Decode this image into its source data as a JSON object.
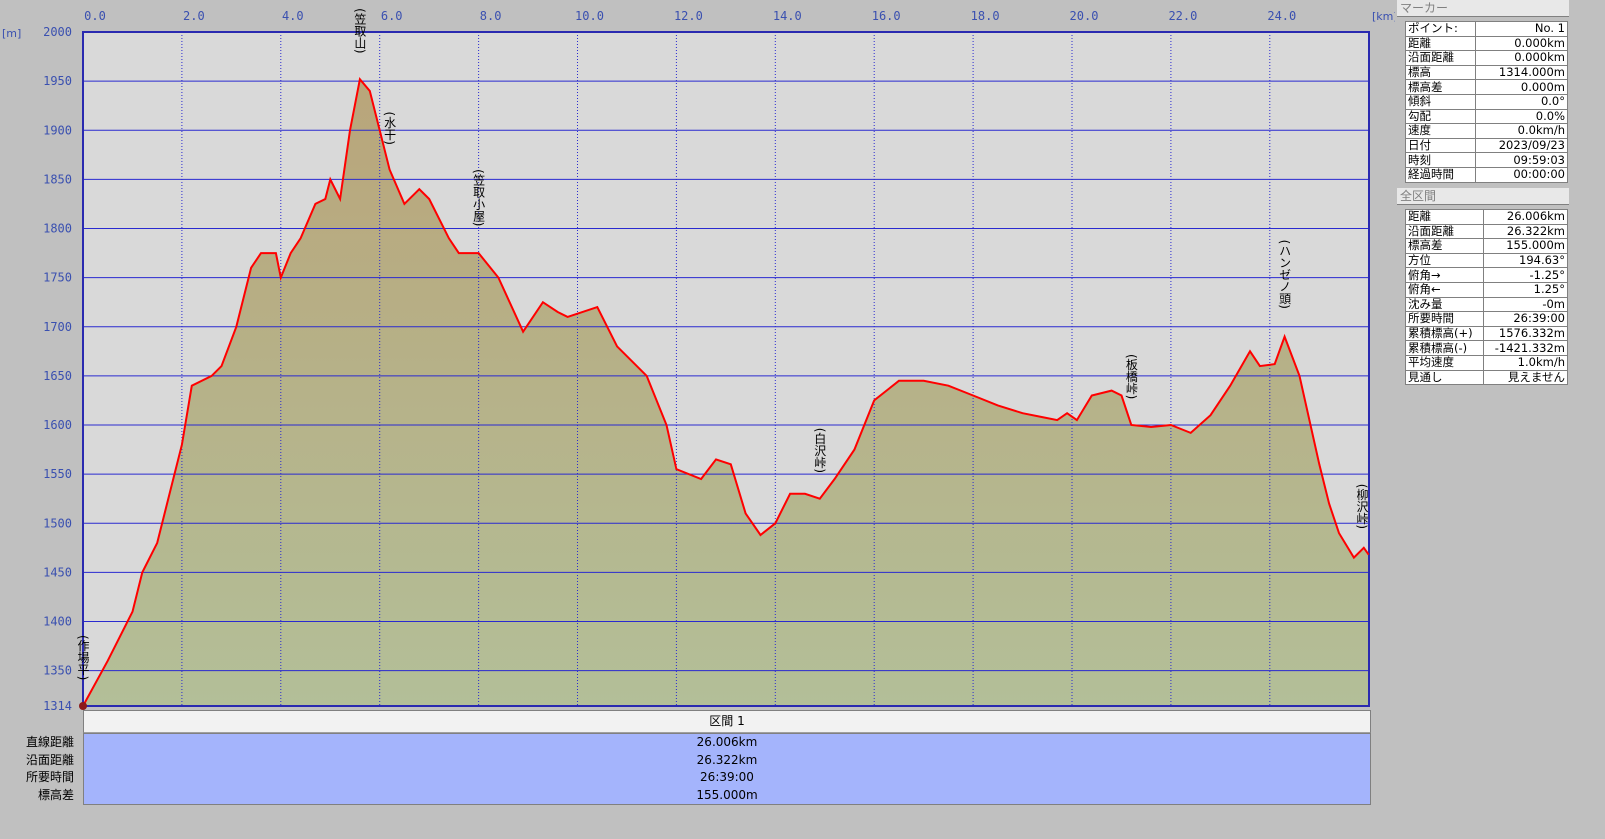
{
  "chart_data": {
    "type": "area",
    "xlabel": "[km]",
    "ylabel": "[m]",
    "xlim": [
      0,
      26.006
    ],
    "ylim": [
      1314,
      2000
    ],
    "x_ticks": [
      "0.0",
      "2.0",
      "4.0",
      "6.0",
      "8.0",
      "10.0",
      "12.0",
      "14.0",
      "16.0",
      "18.0",
      "20.0",
      "22.0",
      "24.0"
    ],
    "y_ticks": [
      "2000",
      "1950",
      "1900",
      "1850",
      "1800",
      "1750",
      "1700",
      "1650",
      "1600",
      "1550",
      "1500",
      "1450",
      "1400",
      "1350",
      "1314"
    ],
    "grid": true,
    "colors": {
      "line": "#ff0000",
      "grid": "#2a2ad0",
      "fill_top": "#b9a57a",
      "fill_bottom": "#b3bf98",
      "sky": "#d9d9d9",
      "axis_text": "#3a50b0"
    },
    "points": [
      [
        0,
        1314
      ],
      [
        0.5,
        1360
      ],
      [
        1.0,
        1410
      ],
      [
        1.2,
        1450
      ],
      [
        1.5,
        1480
      ],
      [
        1.8,
        1540
      ],
      [
        2.0,
        1580
      ],
      [
        2.2,
        1640
      ],
      [
        2.6,
        1650
      ],
      [
        2.8,
        1660
      ],
      [
        3.1,
        1700
      ],
      [
        3.4,
        1760
      ],
      [
        3.6,
        1775
      ],
      [
        3.9,
        1775
      ],
      [
        4.0,
        1750
      ],
      [
        4.2,
        1775
      ],
      [
        4.4,
        1790
      ],
      [
        4.7,
        1825
      ],
      [
        4.9,
        1830
      ],
      [
        5.0,
        1850
      ],
      [
        5.2,
        1830
      ],
      [
        5.4,
        1900
      ],
      [
        5.6,
        1952
      ],
      [
        5.8,
        1940
      ],
      [
        6.0,
        1900
      ],
      [
        6.2,
        1860
      ],
      [
        6.5,
        1825
      ],
      [
        6.8,
        1840
      ],
      [
        7.0,
        1830
      ],
      [
        7.4,
        1790
      ],
      [
        7.6,
        1775
      ],
      [
        8.0,
        1775
      ],
      [
        8.4,
        1750
      ],
      [
        8.9,
        1695
      ],
      [
        9.3,
        1725
      ],
      [
        9.6,
        1715
      ],
      [
        9.8,
        1710
      ],
      [
        10.4,
        1720
      ],
      [
        10.8,
        1680
      ],
      [
        11.4,
        1650
      ],
      [
        11.8,
        1600
      ],
      [
        12.0,
        1555
      ],
      [
        12.5,
        1545
      ],
      [
        12.8,
        1565
      ],
      [
        13.1,
        1560
      ],
      [
        13.4,
        1510
      ],
      [
        13.7,
        1488
      ],
      [
        14.0,
        1500
      ],
      [
        14.3,
        1530
      ],
      [
        14.6,
        1530
      ],
      [
        14.9,
        1525
      ],
      [
        15.2,
        1545
      ],
      [
        15.6,
        1575
      ],
      [
        16.0,
        1625
      ],
      [
        16.5,
        1645
      ],
      [
        17.0,
        1645
      ],
      [
        17.5,
        1640
      ],
      [
        18.0,
        1630
      ],
      [
        18.5,
        1620
      ],
      [
        19.0,
        1612
      ],
      [
        19.4,
        1608
      ],
      [
        19.7,
        1605
      ],
      [
        19.9,
        1612
      ],
      [
        20.1,
        1605
      ],
      [
        20.4,
        1630
      ],
      [
        20.8,
        1635
      ],
      [
        21.0,
        1630
      ],
      [
        21.2,
        1600
      ],
      [
        21.6,
        1598
      ],
      [
        22.0,
        1600
      ],
      [
        22.4,
        1592
      ],
      [
        22.8,
        1610
      ],
      [
        23.2,
        1640
      ],
      [
        23.6,
        1675
      ],
      [
        23.8,
        1660
      ],
      [
        24.1,
        1662
      ],
      [
        24.3,
        1690
      ],
      [
        24.6,
        1650
      ],
      [
        25.0,
        1560
      ],
      [
        25.2,
        1520
      ],
      [
        25.4,
        1490
      ],
      [
        25.7,
        1465
      ],
      [
        25.9,
        1475
      ],
      [
        26.0,
        1468
      ]
    ],
    "waypoints": [
      {
        "name": "(作場平)",
        "x": 0.0,
        "y": 1314
      },
      {
        "name": "(笠取山)",
        "x": 5.6,
        "y": 1952
      },
      {
        "name": "(水干)",
        "x": 6.2,
        "y": 1860
      },
      {
        "name": "(笠取小屋)",
        "x": 8.0,
        "y": 1775
      },
      {
        "name": "(白沢峠)",
        "x": 14.9,
        "y": 1525
      },
      {
        "name": "(板橋峠)",
        "x": 21.2,
        "y": 1600
      },
      {
        "name": "(ハンゼノ頭)",
        "x": 24.3,
        "y": 1690
      },
      {
        "name": "(柳沢峠)",
        "x": 26.0,
        "y": 1468
      }
    ]
  },
  "marker_panel": {
    "title": "マーカー",
    "rows": [
      [
        "ポイント:",
        "No. 1"
      ],
      [
        "距離",
        "0.000km"
      ],
      [
        "沿面距離",
        "0.000km"
      ],
      [
        "標高",
        "1314.000m"
      ],
      [
        "標高差",
        "0.000m"
      ],
      [
        "傾斜",
        "0.0°"
      ],
      [
        "勾配",
        "0.0%"
      ],
      [
        "速度",
        "0.0km/h"
      ],
      [
        "日付",
        "2023/09/23"
      ],
      [
        "時刻",
        "09:59:03"
      ],
      [
        "経過時間",
        "00:00:00"
      ]
    ]
  },
  "total_panel": {
    "title": "全区間",
    "rows": [
      [
        "距離",
        "26.006km"
      ],
      [
        "沿面距離",
        "26.322km"
      ],
      [
        "標高差",
        "155.000m"
      ],
      [
        "方位",
        "194.63°"
      ],
      [
        "俯角→",
        "-1.25°"
      ],
      [
        "俯角←",
        "1.25°"
      ],
      [
        "沈み量",
        "-0m"
      ],
      [
        "所要時間",
        "26:39:00"
      ],
      [
        "累積標高(+)",
        "1576.332m"
      ],
      [
        "累積標高(-)",
        "-1421.332m"
      ],
      [
        "平均速度",
        "1.0km/h"
      ],
      [
        "見通し",
        "見えません"
      ]
    ]
  },
  "section": {
    "title": "区間 1",
    "labels": [
      "直線距離",
      "沿面距離",
      "所要時間",
      "標高差"
    ],
    "values": [
      "26.006km",
      "26.322km",
      "26:39:00",
      "155.000m"
    ]
  }
}
